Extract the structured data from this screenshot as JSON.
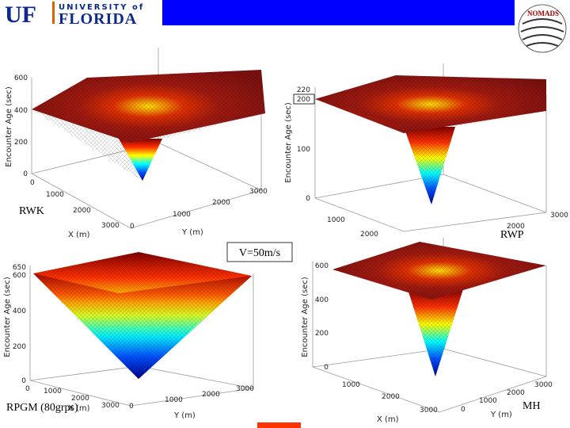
{
  "header": {
    "logo": "UF",
    "university": "UNIVERSITY of",
    "florida": "FLORIDA",
    "badge": "NOMADS"
  },
  "speed_label": "V=50m/s",
  "panels": [
    {
      "label": "RWK",
      "zlabel": "Encounter Age (sec)",
      "xlabel": "X (m)",
      "ylabel": "Y (m)",
      "zticks": [
        600,
        400,
        200,
        0
      ],
      "xticks": [
        0,
        1000,
        2000,
        3000
      ],
      "yticks": [
        0,
        1000,
        2000,
        3000
      ]
    },
    {
      "label": "RWP",
      "zlabel": "Encounter Age (sec)",
      "zticks": [
        220,
        200,
        100,
        0
      ],
      "xticks": [
        1000,
        2000
      ],
      "yticks": [
        2000,
        3000
      ]
    },
    {
      "label": "RPGM (80grps)",
      "zlabel": "Encounter Age (sec)",
      "xlabel": "X (m)",
      "ylabel": "Y (m)",
      "zticks": [
        650,
        600,
        400,
        200,
        0
      ],
      "xticks": [
        0,
        1000,
        2000,
        3000
      ],
      "yticks": [
        0,
        1000,
        2000,
        3000
      ]
    },
    {
      "label": "MH",
      "zlabel": "Encounter Age (sec)",
      "xlabel": "X (m)",
      "ylabel": "Y (m)",
      "zticks": [
        600,
        400,
        200,
        0
      ],
      "xticks": [
        1000,
        2000,
        3000
      ],
      "yticks": [
        0,
        1000,
        2000,
        3000
      ]
    }
  ]
}
